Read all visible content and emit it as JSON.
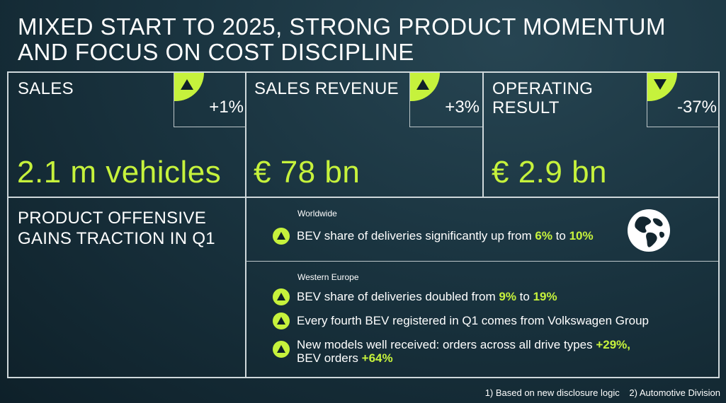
{
  "title": "MIXED START TO 2025, STRONG PRODUCT MOMENTUM AND FOCUS ON COST DISCIPLINE",
  "accent_color": "#c6f23c",
  "kpis": [
    {
      "label": "SALES",
      "value": "2.1 m vehicles",
      "delta": "+1%",
      "direction": "up"
    },
    {
      "label": "SALES REVENUE",
      "value": "€ 78 bn",
      "delta": "+3%",
      "direction": "up"
    },
    {
      "label": "OPERATING RESULT",
      "value": "€ 2.9 bn",
      "delta": "-37%",
      "direction": "down"
    }
  ],
  "offensive": {
    "title": "PRODUCT OFFENSIVE GAINS TRACTION IN Q1",
    "worldwide": {
      "region": "Worldwide",
      "bullet": {
        "pre": "BEV share of deliveries significantly up from ",
        "from": "6%",
        "mid": " to ",
        "to": "10%"
      },
      "icon": "globe-icon"
    },
    "western_europe": {
      "region": "Western Europe",
      "b1": {
        "pre": "BEV share of deliveries doubled from ",
        "from": "9%",
        "mid": " to ",
        "to": "19%"
      },
      "b2": "Every fourth BEV registered in Q1 comes from Volkswagen Group",
      "b3": {
        "pre": "New models well received: orders across all drive types ",
        "v1": "+29%,",
        "pre2": "BEV orders ",
        "v2": "+64%"
      }
    }
  },
  "footnotes": [
    "1)  Based on new disclosure logic",
    "2) Automotive Division"
  ]
}
